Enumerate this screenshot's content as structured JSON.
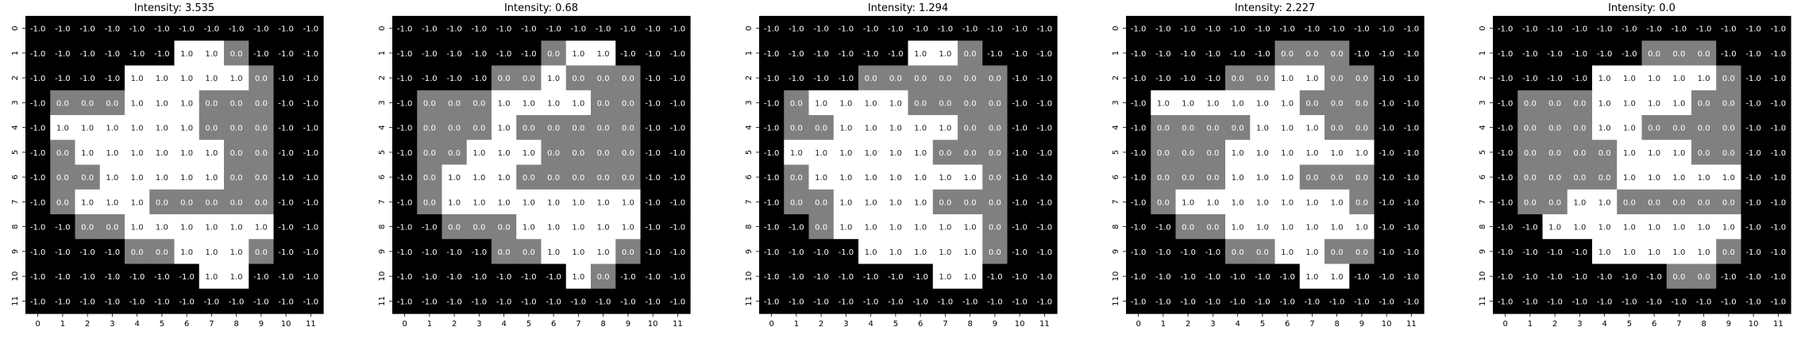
{
  "chart_data": [
    {
      "type": "heatmap",
      "title": "Intensity: 3.535",
      "x_ticks": [
        "0",
        "1",
        "2",
        "3",
        "4",
        "5",
        "6",
        "7",
        "8",
        "9",
        "10",
        "11"
      ],
      "y_ticks": [
        "0",
        "1",
        "2",
        "3",
        "4",
        "5",
        "6",
        "7",
        "8",
        "9",
        "10",
        "11"
      ],
      "vmin": -1.0,
      "vmax": 1.0,
      "colormap": "gray",
      "values": [
        [
          -1,
          -1,
          -1,
          -1,
          -1,
          -1,
          -1,
          -1,
          -1,
          -1,
          -1,
          -1
        ],
        [
          -1,
          -1,
          -1,
          -1,
          -1,
          -1,
          1,
          1,
          0,
          -1,
          -1,
          -1
        ],
        [
          -1,
          -1,
          -1,
          -1,
          1,
          1,
          1,
          1,
          1,
          0,
          -1,
          -1
        ],
        [
          -1,
          0,
          0,
          0,
          1,
          1,
          1,
          0,
          0,
          0,
          -1,
          -1
        ],
        [
          -1,
          1,
          1,
          1,
          1,
          1,
          1,
          0,
          0,
          0,
          -1,
          -1
        ],
        [
          -1,
          0,
          1,
          1,
          1,
          1,
          1,
          1,
          0,
          0,
          -1,
          -1
        ],
        [
          -1,
          0,
          0,
          1,
          1,
          1,
          1,
          1,
          0,
          0,
          -1,
          -1
        ],
        [
          -1,
          0,
          1,
          1,
          1,
          0,
          0,
          0,
          0,
          0,
          -1,
          -1
        ],
        [
          -1,
          -1,
          0,
          0,
          1,
          1,
          1,
          1,
          1,
          1,
          -1,
          -1
        ],
        [
          -1,
          -1,
          -1,
          -1,
          0,
          0,
          1,
          1,
          1,
          0,
          -1,
          -1
        ],
        [
          -1,
          -1,
          -1,
          -1,
          -1,
          -1,
          -1,
          1,
          1,
          -1,
          -1,
          -1
        ],
        [
          -1,
          -1,
          -1,
          -1,
          -1,
          -1,
          -1,
          -1,
          -1,
          -1,
          -1,
          -1
        ]
      ]
    },
    {
      "type": "heatmap",
      "title": "Intensity: 0.68",
      "x_ticks": [
        "0",
        "1",
        "2",
        "3",
        "4",
        "5",
        "6",
        "7",
        "8",
        "9",
        "10",
        "11"
      ],
      "y_ticks": [
        "0",
        "1",
        "2",
        "3",
        "4",
        "5",
        "6",
        "7",
        "8",
        "9",
        "10",
        "11"
      ],
      "vmin": -1.0,
      "vmax": 1.0,
      "colormap": "gray",
      "values": [
        [
          -1,
          -1,
          -1,
          -1,
          -1,
          -1,
          -1,
          -1,
          -1,
          -1,
          -1,
          -1
        ],
        [
          -1,
          -1,
          -1,
          -1,
          -1,
          -1,
          0,
          1,
          1,
          -1,
          -1,
          -1
        ],
        [
          -1,
          -1,
          -1,
          -1,
          0,
          0,
          1,
          0,
          0,
          0,
          -1,
          -1
        ],
        [
          -1,
          0,
          0,
          0,
          1,
          1,
          1,
          1,
          0,
          0,
          -1,
          -1
        ],
        [
          -1,
          0,
          0,
          0,
          1,
          0,
          0,
          0,
          0,
          0,
          -1,
          -1
        ],
        [
          -1,
          0,
          0,
          1,
          1,
          1,
          0,
          0,
          0,
          0,
          -1,
          -1
        ],
        [
          -1,
          0,
          1,
          1,
          1,
          0,
          0,
          0,
          0,
          0,
          -1,
          -1
        ],
        [
          -1,
          0,
          1,
          1,
          1,
          1,
          1,
          1,
          1,
          1,
          -1,
          -1
        ],
        [
          -1,
          -1,
          0,
          0,
          0,
          1,
          1,
          1,
          1,
          1,
          -1,
          -1
        ],
        [
          -1,
          -1,
          -1,
          -1,
          0,
          0,
          1,
          1,
          1,
          0,
          -1,
          -1
        ],
        [
          -1,
          -1,
          -1,
          -1,
          -1,
          -1,
          -1,
          1,
          0,
          -1,
          -1,
          -1
        ],
        [
          -1,
          -1,
          -1,
          -1,
          -1,
          -1,
          -1,
          -1,
          -1,
          -1,
          -1,
          -1
        ]
      ]
    },
    {
      "type": "heatmap",
      "title": "Intensity: 1.294",
      "x_ticks": [
        "0",
        "1",
        "2",
        "3",
        "4",
        "5",
        "6",
        "7",
        "8",
        "9",
        "10",
        "11"
      ],
      "y_ticks": [
        "0",
        "1",
        "2",
        "3",
        "4",
        "5",
        "6",
        "7",
        "8",
        "9",
        "10",
        "11"
      ],
      "vmin": -1.0,
      "vmax": 1.0,
      "colormap": "gray",
      "values": [
        [
          -1,
          -1,
          -1,
          -1,
          -1,
          -1,
          -1,
          -1,
          -1,
          -1,
          -1,
          -1
        ],
        [
          -1,
          -1,
          -1,
          -1,
          -1,
          -1,
          1,
          1,
          0,
          -1,
          -1,
          -1
        ],
        [
          -1,
          -1,
          -1,
          -1,
          0,
          0,
          0,
          0,
          0,
          0,
          -1,
          -1
        ],
        [
          -1,
          0,
          1,
          1,
          1,
          1,
          0,
          0,
          0,
          0,
          -1,
          -1
        ],
        [
          -1,
          0,
          0,
          1,
          1,
          1,
          1,
          1,
          0,
          0,
          -1,
          -1
        ],
        [
          -1,
          1,
          1,
          1,
          1,
          1,
          1,
          0,
          0,
          0,
          -1,
          -1
        ],
        [
          -1,
          0,
          1,
          1,
          1,
          1,
          1,
          1,
          1,
          0,
          -1,
          -1
        ],
        [
          -1,
          0,
          0,
          1,
          1,
          1,
          1,
          0,
          0,
          0,
          -1,
          -1
        ],
        [
          -1,
          -1,
          0,
          1,
          1,
          1,
          1,
          1,
          1,
          0,
          -1,
          -1
        ],
        [
          -1,
          -1,
          -1,
          -1,
          1,
          1,
          1,
          1,
          1,
          0,
          -1,
          -1
        ],
        [
          -1,
          -1,
          -1,
          -1,
          -1,
          -1,
          -1,
          1,
          1,
          -1,
          -1,
          -1
        ],
        [
          -1,
          -1,
          -1,
          -1,
          -1,
          -1,
          -1,
          -1,
          -1,
          -1,
          -1,
          -1
        ]
      ]
    },
    {
      "type": "heatmap",
      "title": "Intensity: 2.227",
      "x_ticks": [
        "0",
        "1",
        "2",
        "3",
        "4",
        "5",
        "6",
        "7",
        "8",
        "9",
        "10",
        "11"
      ],
      "y_ticks": [
        "0",
        "1",
        "2",
        "3",
        "4",
        "5",
        "6",
        "7",
        "8",
        "9",
        "10",
        "11"
      ],
      "vmin": -1.0,
      "vmax": 1.0,
      "colormap": "gray",
      "values": [
        [
          -1,
          -1,
          -1,
          -1,
          -1,
          -1,
          -1,
          -1,
          -1,
          -1,
          -1,
          -1
        ],
        [
          -1,
          -1,
          -1,
          -1,
          -1,
          -1,
          0,
          0,
          0,
          -1,
          -1,
          -1
        ],
        [
          -1,
          -1,
          -1,
          -1,
          0,
          0,
          1,
          1,
          0,
          0,
          -1,
          -1
        ],
        [
          -1,
          1,
          1,
          1,
          1,
          1,
          1,
          0,
          0,
          0,
          -1,
          -1
        ],
        [
          -1,
          0,
          0,
          0,
          0,
          1,
          1,
          1,
          0,
          0,
          -1,
          -1
        ],
        [
          -1,
          0,
          0,
          0,
          1,
          1,
          1,
          1,
          1,
          1,
          -1,
          -1
        ],
        [
          -1,
          0,
          0,
          0,
          1,
          1,
          1,
          0,
          0,
          0,
          -1,
          -1
        ],
        [
          -1,
          0,
          1,
          1,
          1,
          1,
          1,
          1,
          1,
          0,
          -1,
          -1
        ],
        [
          -1,
          -1,
          0,
          0,
          1,
          1,
          1,
          1,
          1,
          1,
          -1,
          -1
        ],
        [
          -1,
          -1,
          -1,
          -1,
          0,
          0,
          1,
          1,
          0,
          0,
          -1,
          -1
        ],
        [
          -1,
          -1,
          -1,
          -1,
          -1,
          -1,
          -1,
          1,
          1,
          -1,
          -1,
          -1
        ],
        [
          -1,
          -1,
          -1,
          -1,
          -1,
          -1,
          -1,
          -1,
          -1,
          -1,
          -1,
          -1
        ]
      ]
    },
    {
      "type": "heatmap",
      "title": "Intensity: 0.0",
      "x_ticks": [
        "0",
        "1",
        "2",
        "3",
        "4",
        "5",
        "6",
        "7",
        "8",
        "9",
        "10",
        "11"
      ],
      "y_ticks": [
        "0",
        "1",
        "2",
        "3",
        "4",
        "5",
        "6",
        "7",
        "8",
        "9",
        "10",
        "11"
      ],
      "vmin": -1.0,
      "vmax": 1.0,
      "colormap": "gray",
      "values": [
        [
          -1,
          -1,
          -1,
          -1,
          -1,
          -1,
          -1,
          -1,
          -1,
          -1,
          -1,
          -1
        ],
        [
          -1,
          -1,
          -1,
          -1,
          -1,
          -1,
          0,
          0,
          0,
          -1,
          -1,
          -1
        ],
        [
          -1,
          -1,
          -1,
          -1,
          1,
          1,
          1,
          1,
          1,
          0,
          -1,
          -1
        ],
        [
          -1,
          0,
          0,
          0,
          1,
          1,
          1,
          1,
          0,
          0,
          -1,
          -1
        ],
        [
          -1,
          0,
          0,
          0,
          1,
          1,
          0,
          0,
          0,
          0,
          -1,
          -1
        ],
        [
          -1,
          0,
          0,
          0,
          0,
          1,
          1,
          1,
          0,
          0,
          -1,
          -1
        ],
        [
          -1,
          0,
          0,
          0,
          0,
          1,
          1,
          1,
          1,
          1,
          -1,
          -1
        ],
        [
          -1,
          0,
          0,
          1,
          1,
          0,
          0,
          0,
          0,
          0,
          -1,
          -1
        ],
        [
          -1,
          -1,
          1,
          1,
          1,
          1,
          1,
          1,
          1,
          1,
          -1,
          -1
        ],
        [
          -1,
          -1,
          -1,
          -1,
          1,
          1,
          1,
          1,
          1,
          0,
          -1,
          -1
        ],
        [
          -1,
          -1,
          -1,
          -1,
          -1,
          -1,
          -1,
          0,
          0,
          -1,
          -1,
          -1
        ],
        [
          -1,
          -1,
          -1,
          -1,
          -1,
          -1,
          -1,
          -1,
          -1,
          -1,
          -1,
          -1
        ]
      ]
    }
  ]
}
